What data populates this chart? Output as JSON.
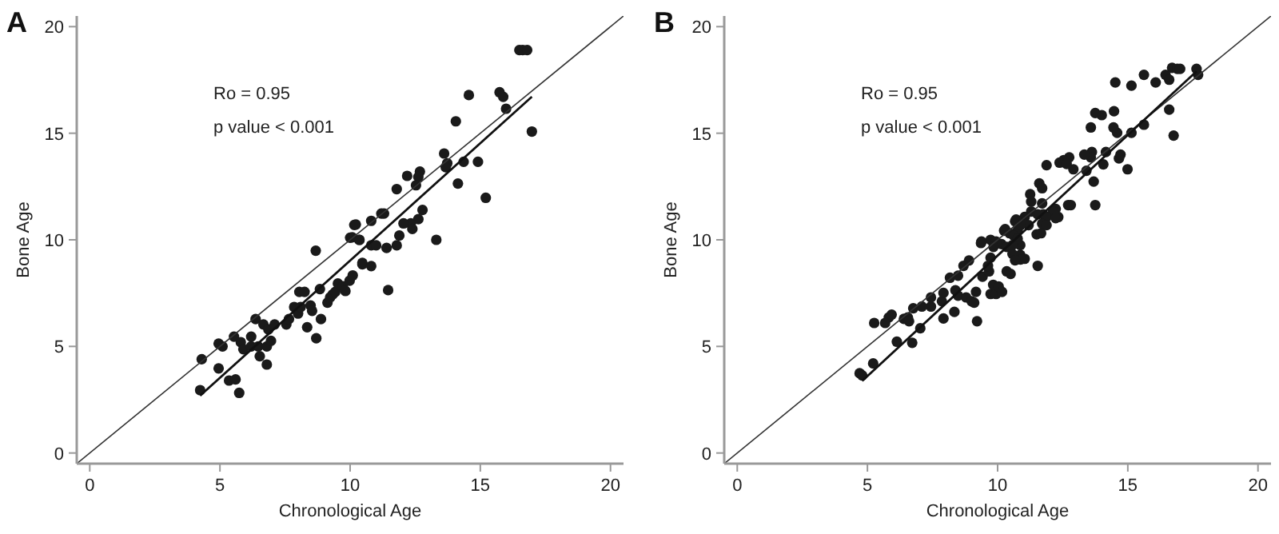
{
  "chart_data": [
    {
      "type": "scatter",
      "title": "A",
      "xlabel": "Chronological Age",
      "ylabel": "Bone Age",
      "xlim": [
        -0.5,
        20.5
      ],
      "ylim": [
        -0.5,
        20.5
      ],
      "xticks": [
        0,
        5,
        10,
        15,
        20
      ],
      "yticks": [
        0,
        5,
        10,
        15,
        20
      ],
      "annotations": [
        "Ro = 0.95",
        "p value < 0.001"
      ],
      "series": [
        {
          "type": "scatter",
          "marker": "circle",
          "color": "#1a1a1a",
          "x": [
            4.3,
            4.24,
            4.95,
            5.1,
            4.95,
            5.35,
            5.6,
            5.74,
            5.54,
            5.8,
            5.9,
            6.2,
            6.2,
            6.37,
            6.47,
            6.53,
            6.67,
            6.8,
            6.86,
            6.8,
            6.96,
            7.1,
            7.55,
            7.65,
            7.85,
            8.0,
            8.05,
            8.25,
            8.1,
            8.35,
            8.48,
            8.54,
            8.7,
            8.84,
            8.88,
            8.68,
            9.13,
            9.23,
            9.33,
            9.43,
            9.53,
            9.72,
            9.82,
            9.98,
            10.1,
            10.0,
            10.16,
            10.35,
            10.47,
            16.5,
            16.63,
            16.8,
            16.98,
            15.99,
            15.74,
            15.88,
            14.56,
            14.06,
            15.21,
            14.91,
            14.36,
            14.14,
            13.61,
            13.73,
            13.67,
            12.68,
            12.62,
            12.19,
            12.53,
            11.79,
            12.78,
            12.62,
            12.33,
            12.39,
            12.05,
            11.89,
            11.79,
            11.4,
            13.31,
            11.2,
            11.3,
            10.81,
            10.22,
            10.08,
            10.36,
            10.81,
            11.0,
            10.47,
            10.81,
            11.46
          ],
          "values": [
            4.4,
            2.95,
            5.13,
            5.0,
            3.97,
            3.4,
            3.45,
            2.82,
            5.46,
            5.2,
            4.87,
            5.0,
            5.46,
            6.28,
            5.0,
            4.54,
            6.03,
            5.0,
            5.8,
            4.15,
            5.26,
            6.03,
            6.03,
            6.28,
            6.85,
            6.54,
            7.56,
            7.56,
            6.85,
            5.9,
            6.92,
            6.67,
            5.38,
            7.69,
            6.28,
            9.49,
            7.05,
            7.3,
            7.44,
            7.56,
            7.95,
            7.82,
            7.6,
            8.08,
            8.33,
            10.1,
            10.7,
            10.0,
            8.92,
            18.9,
            18.9,
            18.9,
            15.08,
            16.15,
            16.92,
            16.71,
            16.79,
            15.56,
            11.97,
            13.66,
            13.66,
            12.64,
            14.05,
            13.59,
            13.41,
            13.2,
            12.95,
            13.0,
            12.56,
            12.38,
            11.4,
            10.97,
            10.77,
            10.51,
            10.77,
            10.2,
            9.74,
            9.62,
            10.0,
            11.23,
            11.23,
            10.89,
            10.72,
            10.12,
            10.0,
            9.74,
            9.74,
            8.85,
            8.77,
            7.64
          ]
        },
        {
          "type": "line",
          "color": "#333333",
          "x": [
            -0.5,
            20.5
          ],
          "values": [
            -0.5,
            20.5
          ]
        },
        {
          "type": "line",
          "color": "#111111",
          "x": [
            4.24,
            16.98
          ],
          "values": [
            2.69,
            16.71
          ]
        }
      ]
    },
    {
      "type": "scatter",
      "title": "B",
      "xlabel": "Chronological Age",
      "ylabel": "Bone Age",
      "xlim": [
        -0.5,
        20.5
      ],
      "ylim": [
        -0.5,
        20.5
      ],
      "xticks": [
        0,
        5,
        10,
        15,
        20
      ],
      "yticks": [
        0,
        5,
        10,
        15,
        20
      ],
      "annotations": [
        "Ro = 0.95",
        "p value < 0.001"
      ],
      "series": [
        {
          "type": "scatter",
          "marker": "circle",
          "color": "#1a1a1a",
          "x": [
            4.7,
            4.8,
            5.22,
            5.26,
            5.68,
            5.82,
            5.93,
            6.13,
            6.4,
            6.55,
            6.6,
            6.72,
            6.76,
            7.03,
            7.09,
            7.44,
            7.44,
            7.86,
            7.92,
            7.92,
            8.17,
            8.34,
            8.38,
            8.48,
            8.48,
            8.69,
            8.9,
            8.79,
            9.0,
            9.1,
            9.17,
            9.21,
            9.36,
            9.42,
            9.67,
            9.73,
            9.73,
            9.94,
            9.83,
            10.04,
            10.17,
            10.15,
            10.35,
            10.5,
            10.25,
            10.35,
            10.67,
            10.77,
            10.87,
            10.87,
            11.04,
            17.64,
            17.7,
            16.7,
            16.9,
            17.01,
            16.45,
            16.59,
            16.07,
            15.62,
            15.14,
            14.52,
            16.59,
            16.76,
            15.62,
            15.14,
            14.59,
            14.45,
            14.47,
            14.0,
            13.75,
            13.58,
            14.72,
            14.66,
            14.99,
            14.16,
            14.06,
            13.62,
            13.58,
            13.33,
            13.69,
            13.41,
            13.75,
            12.91,
            12.75,
            12.54,
            12.38,
            12.65,
            11.88,
            12.71,
            12.81,
            12.23,
            12.33,
            12.13,
            11.75,
            11.71,
            11.6,
            11.71,
            11.25,
            11.29,
            11.88,
            11.71,
            11.88,
            12.23,
            11.29,
            11.54,
            11.04,
            11.19,
            11.5,
            11.67,
            11.54,
            10.71,
            10.88,
            10.29,
            10.46,
            10.63,
            10.77,
            10.57,
            10.57,
            10.88,
            10.67,
            9.94,
            9.84,
            9.38,
            9.73,
            9.63
          ],
          "values": [
            3.74,
            3.64,
            4.2,
            6.1,
            6.1,
            6.36,
            6.49,
            5.22,
            6.29,
            6.36,
            6.18,
            5.17,
            6.79,
            5.85,
            6.87,
            7.3,
            6.87,
            7.12,
            7.51,
            6.31,
            8.22,
            6.62,
            7.63,
            7.38,
            8.32,
            8.78,
            9.03,
            7.3,
            7.12,
            7.05,
            7.56,
            6.18,
            9.85,
            8.27,
            8.52,
            10.0,
            7.46,
            7.46,
            7.89,
            7.81,
            7.56,
            9.8,
            8.52,
            8.4,
            10.43,
            9.67,
            10.87,
            10.43,
            9.75,
            9.29,
            9.11,
            18.02,
            17.74,
            18.07,
            18.02,
            18.02,
            17.74,
            17.51,
            17.38,
            17.74,
            17.23,
            17.38,
            16.11,
            14.89,
            15.4,
            15.02,
            15.02,
            15.27,
            16.03,
            15.85,
            15.95,
            15.27,
            14.0,
            13.82,
            13.31,
            14.12,
            13.54,
            14.12,
            13.87,
            14.0,
            12.73,
            13.24,
            11.63,
            13.31,
            13.87,
            13.74,
            13.62,
            13.56,
            13.5,
            11.63,
            11.63,
            11.45,
            11.07,
            11.33,
            11.2,
            11.71,
            12.65,
            12.42,
            12.14,
            11.79,
            11.07,
            10.76,
            10.69,
            11.02,
            11.33,
            11.2,
            11.07,
            10.69,
            10.26,
            10.31,
            8.78,
            10.95,
            10.69,
            10.5,
            10.31,
            10.18,
            10.05,
            9.75,
            9.34,
            9.08,
            9.04,
            9.92,
            9.67,
            9.92,
            9.16,
            8.78
          ]
        },
        {
          "type": "line",
          "color": "#333333",
          "x": [
            -0.5,
            20.5
          ],
          "values": [
            -0.5,
            20.5
          ]
        },
        {
          "type": "line",
          "color": "#111111",
          "x": [
            4.8,
            17.64
          ],
          "values": [
            3.38,
            17.9
          ]
        }
      ]
    }
  ]
}
